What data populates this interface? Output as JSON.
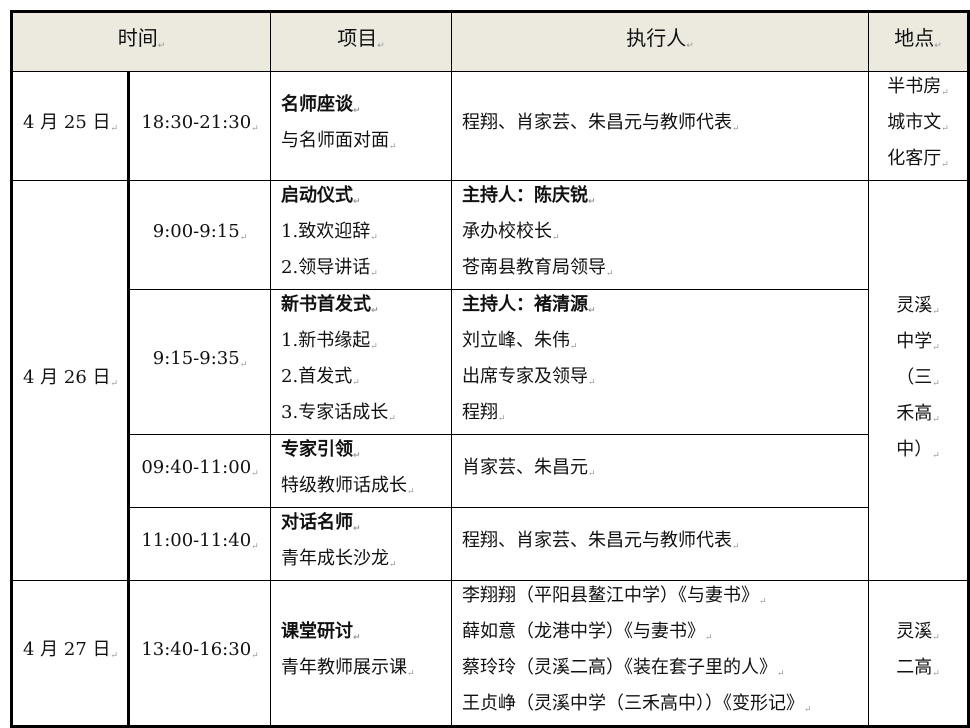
{
  "headers": {
    "time": "时间",
    "item": "项目",
    "executor": "执行人",
    "location": "地点"
  },
  "days": [
    {
      "date": "4 月 25 日",
      "location": [
        "半书房",
        "城市文",
        "化客厅"
      ],
      "sessions": [
        {
          "time": "18:30-21:30",
          "title": "名师座谈",
          "items": [
            "与名师面对面"
          ],
          "executor_title": "",
          "executors": [
            "程翔、肖家芸、朱昌元与教师代表"
          ]
        }
      ]
    },
    {
      "date": "4 月 26 日",
      "location": [
        "灵溪",
        "中学",
        "（三",
        "禾高",
        "中）"
      ],
      "sessions": [
        {
          "time": "9:00-9:15",
          "title": "启动仪式",
          "items": [
            "1.致欢迎辞",
            "2.领导讲话"
          ],
          "executor_title": "主持人：陈庆锐",
          "executors": [
            "承办校校长",
            "苍南县教育局领导"
          ]
        },
        {
          "time": "9:15-9:35",
          "title": "新书首发式",
          "items": [
            "1.新书缘起",
            "2.首发式",
            "3.专家话成长"
          ],
          "executor_title": "主持人：褚清源",
          "executors": [
            "刘立峰、朱伟",
            "出席专家及领导",
            "程翔"
          ]
        },
        {
          "time": "09:40-11:00",
          "title": "专家引领",
          "items": [
            "特级教师话成长"
          ],
          "executor_title": "",
          "executors": [
            "肖家芸、朱昌元"
          ]
        },
        {
          "time": "11:00-11:40",
          "title": "对话名师",
          "items": [
            "青年成长沙龙"
          ],
          "executor_title": "",
          "executors": [
            "程翔、肖家芸、朱昌元与教师代表"
          ]
        }
      ]
    },
    {
      "date": "4 月 27 日",
      "location": [
        "灵溪",
        "二高"
      ],
      "sessions": [
        {
          "time": "13:40-16:30",
          "title": "课堂研讨",
          "items": [
            "青年教师展示课"
          ],
          "executor_title": "",
          "executors": [
            "李翔翔（平阳县鳌江中学）《与妻书》",
            "薛如意（龙港中学）《与妻书》",
            "蔡玲玲（灵溪二高）《装在套子里的人》",
            "王贞峥（灵溪中学（三禾高中））《变形记》"
          ]
        }
      ]
    }
  ]
}
